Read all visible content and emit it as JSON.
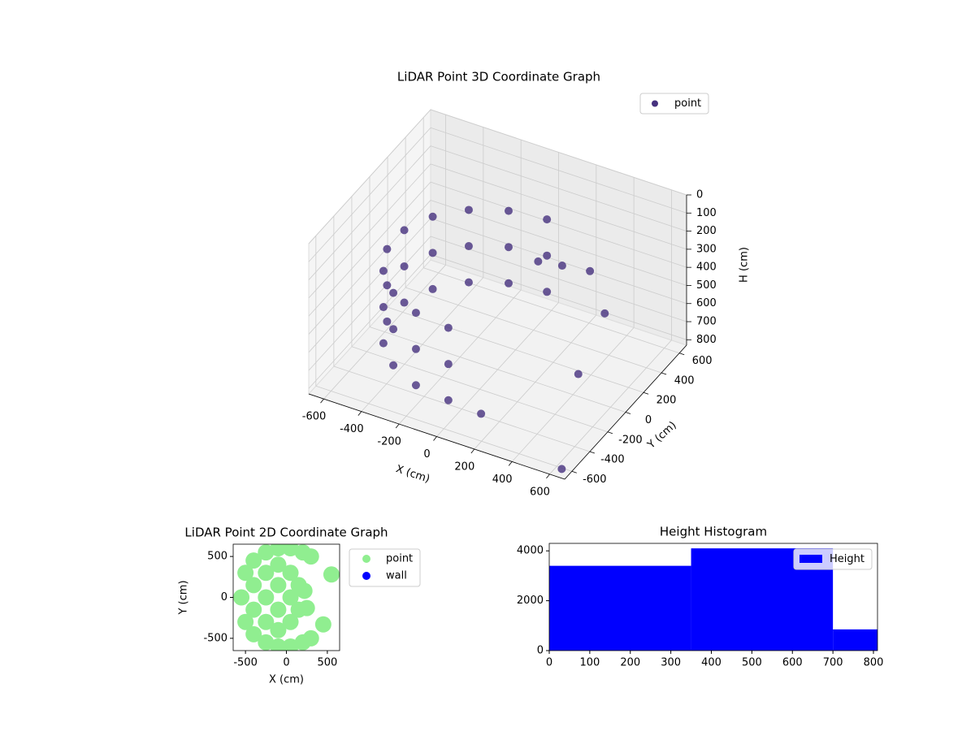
{
  "chart_data": [
    {
      "type": "scatter3d",
      "title": "LiDAR Point 3D Coordinate Graph",
      "xlabel": "X (cm)",
      "ylabel": "Y (cm)",
      "zlabel": "H (cm)",
      "xlim": [
        -680,
        680
      ],
      "ylim": [
        -680,
        680
      ],
      "zlim": [
        0,
        830
      ],
      "zinvert": true,
      "xticks": [
        -600,
        -400,
        -200,
        0,
        200,
        400,
        600
      ],
      "yticks": [
        -600,
        -400,
        -200,
        0,
        200,
        400,
        600
      ],
      "zticks": [
        0,
        100,
        200,
        300,
        400,
        500,
        600,
        700,
        800
      ],
      "grid": true,
      "legend": "upper right",
      "series": [
        {
          "name": "point",
          "color": "#46317e",
          "x": [
            0,
            -188,
            -354,
            -476,
            -542,
            -542,
            -476,
            -354,
            -188,
            0,
            0,
            -188,
            -354,
            -476,
            -542,
            -542,
            -476,
            -354,
            -188,
            0,
            0,
            -188,
            -354,
            -476,
            -542,
            -542,
            -476,
            -354,
            -188,
            0,
            150,
            300,
            450,
            500,
            200,
            120,
            650
          ],
          "y": [
            550,
            517,
            421,
            275,
            96,
            -96,
            -275,
            -421,
            -517,
            -550,
            550,
            517,
            421,
            275,
            96,
            -96,
            -275,
            -421,
            -517,
            -550,
            550,
            517,
            421,
            275,
            96,
            -96,
            -275,
            -421,
            -517,
            -550,
            -500,
            400,
            250,
            -150,
            300,
            200,
            -650
          ],
          "h": [
            300,
            300,
            300,
            300,
            300,
            300,
            300,
            300,
            300,
            300,
            500,
            500,
            500,
            500,
            500,
            500,
            500,
            500,
            500,
            500,
            700,
            700,
            700,
            700,
            700,
            700,
            700,
            700,
            700,
            700,
            750,
            400,
            500,
            600,
            350,
            300,
            800
          ]
        }
      ]
    },
    {
      "type": "scatter",
      "title": "LiDAR Point 2D Coordinate Graph",
      "xlabel": "X (cm)",
      "ylabel": "Y (cm)",
      "xlim": [
        -650,
        650
      ],
      "ylim": [
        -650,
        650
      ],
      "xticks": [
        -500,
        0,
        500
      ],
      "yticks": [
        -500,
        0,
        500
      ],
      "legend": "outside right",
      "series": [
        {
          "name": "point",
          "color": "#90ee90",
          "x": [
            -550,
            -500,
            -500,
            -400,
            -400,
            -400,
            -400,
            -250,
            -250,
            -250,
            -250,
            -250,
            -100,
            -100,
            -100,
            -100,
            -100,
            -100,
            50,
            50,
            50,
            50,
            50,
            200,
            200,
            150,
            150,
            300,
            300,
            450,
            250,
            220,
            550
          ],
          "y": [
            0,
            300,
            -300,
            450,
            -450,
            150,
            -150,
            550,
            -550,
            300,
            0,
            -300,
            600,
            -600,
            400,
            150,
            -150,
            -400,
            600,
            -600,
            300,
            0,
            -300,
            550,
            -550,
            150,
            -150,
            500,
            -500,
            -330,
            -130,
            80,
            280
          ]
        },
        {
          "name": "wall",
          "color": "#0000ff",
          "x": [],
          "y": []
        }
      ]
    },
    {
      "type": "histogram",
      "title": "Height Histogram",
      "bins": [
        0,
        350,
        700,
        810
      ],
      "values": [
        3400,
        4100,
        850
      ],
      "name": "Height",
      "color": "#0000ff",
      "xlim": [
        0,
        810
      ],
      "ylim": [
        0,
        4300
      ],
      "xticks": [
        0,
        100,
        200,
        300,
        400,
        500,
        600,
        700,
        800
      ],
      "yticks": [
        0,
        2000,
        4000
      ],
      "legend": "upper right"
    }
  ]
}
